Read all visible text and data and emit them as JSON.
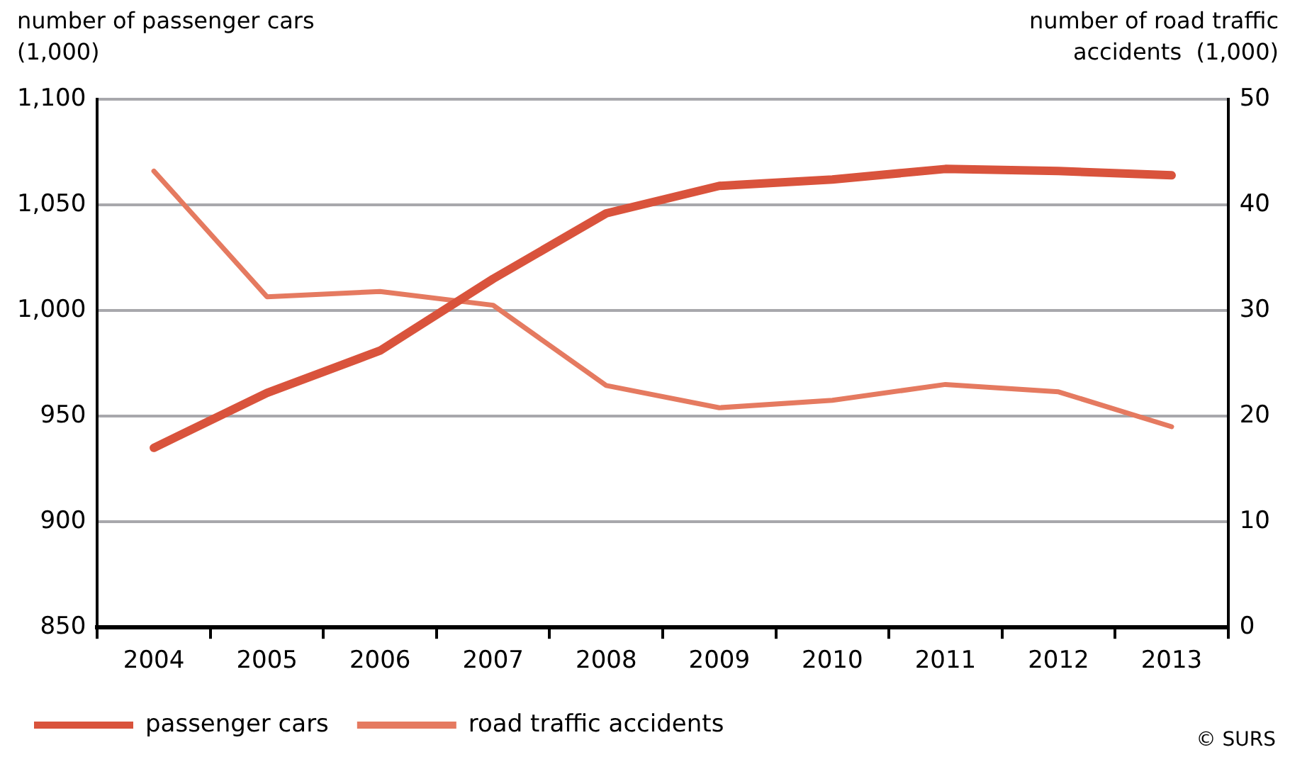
{
  "chart_data": {
    "type": "line",
    "ylabel": "number of passenger cars (1,000)",
    "y2label": "number of road traffic accidents  (1,000)",
    "categories": [
      "2004",
      "2005",
      "2006",
      "2007",
      "2008",
      "2009",
      "2010",
      "2011",
      "2012",
      "2013"
    ],
    "series": [
      {
        "name": "passenger cars",
        "color": "#d9533c",
        "values": [
          935,
          961,
          981,
          1015,
          1046,
          1059,
          1062,
          1067,
          1066,
          1064
        ]
      },
      {
        "name": "road traffic accidents",
        "color": "#e57a60",
        "axis": "y2",
        "values": [
          43.2,
          31.3,
          31.8,
          30.5,
          22.9,
          20.8,
          21.5,
          23.0,
          22.3,
          19.0
        ]
      }
    ],
    "ylim": [
      850,
      1100
    ],
    "yticks": [
      850,
      900,
      950,
      {
        "value": 1000,
        "label": "1,000"
      },
      {
        "value": 1050,
        "label": "1,050"
      },
      {
        "value": 1100,
        "label": "1,100"
      }
    ],
    "y2lim": [
      0,
      50
    ],
    "y2ticks": [
      0,
      10,
      20,
      30,
      40,
      50
    ],
    "grid": "y",
    "legend": "bottom",
    "marker": "none",
    "line_style": "solid",
    "annotations": [
      "© SURS"
    ]
  }
}
